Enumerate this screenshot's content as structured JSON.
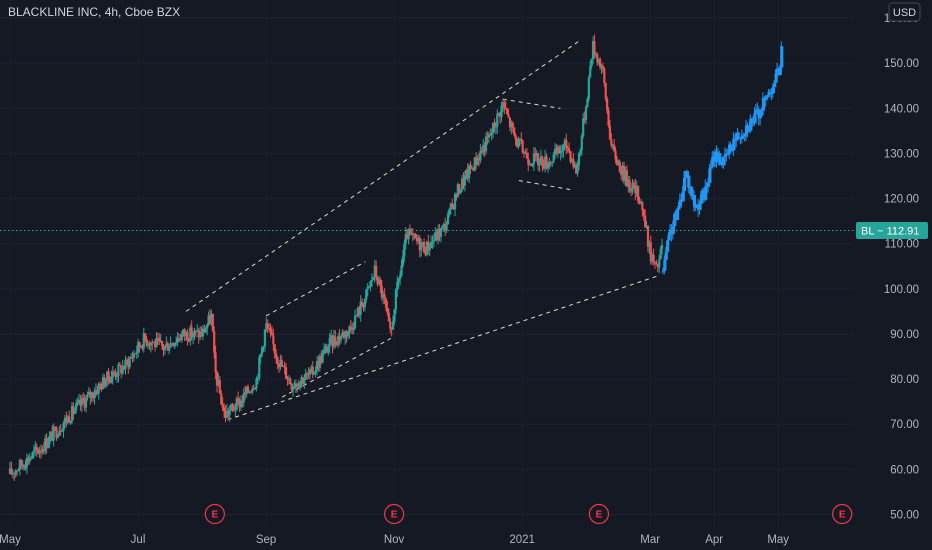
{
  "header": {
    "title": "BLACKLINE INC, 4h, Cboe BZX",
    "currency": "USD"
  },
  "price_tag": {
    "label": "BL − 112.91",
    "value": 112.91
  },
  "earnings_marker": "E",
  "colors": {
    "background": "#151924",
    "up": "#26a69a",
    "down": "#ef5350",
    "highlight": "#2196f3",
    "trendline": "#e0dcc8",
    "earnings": "#f23645",
    "last_price": "#26a69a"
  },
  "chart_data": {
    "type": "candlestick",
    "symbol": "BL",
    "timeframe": "4h",
    "exchange": "Cboe BZX",
    "y_axis": {
      "ticks": [
        50,
        60,
        70,
        80,
        90,
        100,
        110,
        120,
        130,
        140,
        150,
        160
      ],
      "tick_labels": [
        "50.00",
        "60.00",
        "70.00",
        "80.00",
        "90.00",
        "100.00",
        "110.00",
        "120.00",
        "130.00",
        "140.00",
        "150.00",
        "160.00"
      ],
      "range": [
        47,
        164
      ],
      "position": "right"
    },
    "x_axis": {
      "labels": [
        "May",
        "Jul",
        "Sep",
        "Nov",
        "2021",
        "Mar",
        "Apr",
        "May"
      ],
      "positions": [
        0,
        2,
        4,
        6,
        8,
        10,
        11,
        12
      ],
      "range": [
        0,
        13.2
      ]
    },
    "last_price": 112.91,
    "earnings_events": [
      3.2,
      6.0,
      9.2,
      13.0
    ],
    "price_path_black": [
      [
        0,
        59
      ],
      [
        0.5,
        65
      ],
      [
        1,
        73
      ],
      [
        1.3,
        77
      ],
      [
        1.5,
        80
      ],
      [
        1.8,
        83
      ],
      [
        2.1,
        89
      ],
      [
        2.4,
        87
      ],
      [
        2.7,
        90
      ],
      [
        3.0,
        90
      ],
      [
        3.15,
        94
      ],
      [
        3.2,
        82
      ],
      [
        3.35,
        72
      ],
      [
        3.6,
        75
      ],
      [
        3.85,
        80
      ],
      [
        4.0,
        92
      ],
      [
        4.2,
        84
      ],
      [
        4.4,
        79
      ],
      [
        4.7,
        81
      ],
      [
        5.0,
        88
      ],
      [
        5.3,
        91
      ],
      [
        5.55,
        98
      ],
      [
        5.7,
        104
      ],
      [
        5.85,
        97
      ],
      [
        5.95,
        89
      ],
      [
        6.0,
        96
      ],
      [
        6.2,
        112
      ],
      [
        6.5,
        109
      ],
      [
        6.8,
        114
      ],
      [
        7.0,
        122
      ],
      [
        7.3,
        129
      ],
      [
        7.5,
        134
      ],
      [
        7.7,
        141
      ],
      [
        7.9,
        133
      ],
      [
        8.1,
        129
      ],
      [
        8.4,
        128
      ],
      [
        8.7,
        132
      ],
      [
        8.85,
        126
      ],
      [
        9.0,
        141
      ],
      [
        9.1,
        154
      ],
      [
        9.25,
        149
      ],
      [
        9.4,
        131
      ],
      [
        9.6,
        125
      ],
      [
        9.85,
        120
      ],
      [
        10.0,
        108
      ],
      [
        10.1,
        104
      ],
      [
        10.2,
        110
      ]
    ],
    "price_path_highlight": [
      [
        10.2,
        104
      ],
      [
        10.3,
        112
      ],
      [
        10.45,
        118
      ],
      [
        10.55,
        126
      ],
      [
        10.7,
        118
      ],
      [
        10.85,
        121
      ],
      [
        11.0,
        130
      ],
      [
        11.15,
        128
      ],
      [
        11.3,
        133
      ],
      [
        11.5,
        136
      ],
      [
        11.7,
        139
      ],
      [
        11.9,
        145
      ],
      [
        12.0,
        148
      ],
      [
        12.05,
        153
      ]
    ],
    "annotations": [
      {
        "type": "trendline",
        "from": [
          2.75,
          95
        ],
        "to": [
          8.9,
          155
        ]
      },
      {
        "type": "trendline",
        "from": [
          3.4,
          71
        ],
        "to": [
          10.15,
          103
        ]
      },
      {
        "type": "trendline",
        "from": [
          4.0,
          94
        ],
        "to": [
          5.55,
          106
        ]
      },
      {
        "type": "trendline",
        "from": [
          4.25,
          76
        ],
        "to": [
          5.95,
          89
        ]
      },
      {
        "type": "trendline",
        "from": [
          7.7,
          142
        ],
        "to": [
          8.6,
          140
        ]
      },
      {
        "type": "trendline",
        "from": [
          7.95,
          124
        ],
        "to": [
          8.75,
          122
        ]
      }
    ]
  }
}
